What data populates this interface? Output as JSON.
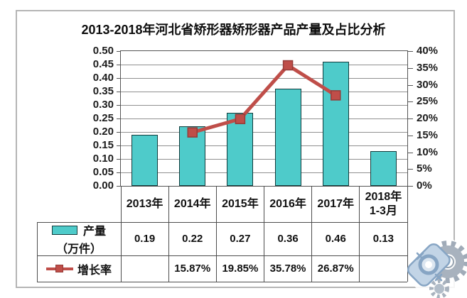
{
  "chart_data": {
    "type": "combo-bar-line",
    "title": "2013-2018年河北省矫形器矫形器产品产量及占比分析",
    "categories": [
      "2013年",
      "2014年",
      "2015年",
      "2016年",
      "2017年",
      "2018年\n1-3月"
    ],
    "series": [
      {
        "name": "产量（万件）",
        "type": "bar",
        "axis": "left",
        "values": [
          0.19,
          0.22,
          0.27,
          0.36,
          0.46,
          0.13
        ]
      },
      {
        "name": "增长率",
        "type": "line",
        "axis": "right",
        "values": [
          null,
          15.87,
          19.85,
          35.78,
          26.87,
          null
        ]
      }
    ],
    "left_axis": {
      "min": 0,
      "max": 0.5,
      "step": 0.05,
      "ticks": [
        "0.50",
        "0.45",
        "0.40",
        "0.35",
        "0.30",
        "0.25",
        "0.20",
        "0.15",
        "0.10",
        "0.05",
        "0.00"
      ]
    },
    "right_axis": {
      "min": 0,
      "max": 40,
      "step": 5,
      "ticks": [
        "40%",
        "35%",
        "30%",
        "25%",
        "20%",
        "15%",
        "10%",
        "5%",
        "0%"
      ]
    },
    "grid": "horizontal",
    "legend_position": "table-left"
  },
  "table": {
    "rows": [
      {
        "legend": [
          "产量",
          "（万件）"
        ],
        "values": [
          "0.19",
          "0.22",
          "0.27",
          "0.36",
          "0.46",
          "0.13"
        ]
      },
      {
        "legend": [
          "增长率"
        ],
        "values": [
          "",
          "15.87%",
          "19.85%",
          "35.78%",
          "26.87%",
          ""
        ]
      }
    ]
  },
  "colors": {
    "bar": "#4ecbca",
    "bar_border": "#123c3c",
    "line": "#bf4e49",
    "marker_border": "#953b38",
    "grid": "#909090",
    "table_border": "#4d4d4d"
  },
  "watermark": "gear-logo"
}
